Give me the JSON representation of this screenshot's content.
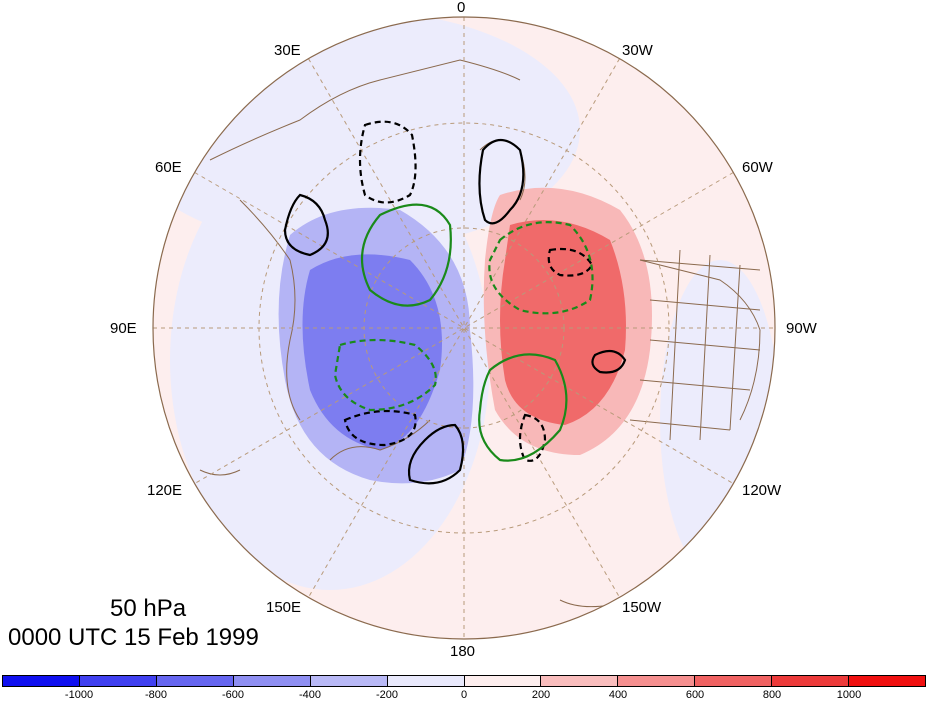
{
  "title": {
    "level": "50 hPa",
    "time": "0000 UTC 15 Feb 1999"
  },
  "longitude_labels": {
    "lon_0": "0",
    "lon_30w": "30W",
    "lon_60w": "60W",
    "lon_90w": "90W",
    "lon_120w": "120W",
    "lon_150w": "150W",
    "lon_180": "180",
    "lon_150e": "150E",
    "lon_120e": "120E",
    "lon_90e": "90E",
    "lon_60e": "60E",
    "lon_30e": "30E"
  },
  "colorbar": {
    "colors": [
      "#1010f0",
      "#4040f0",
      "#6666f0",
      "#8f8ff2",
      "#b9b9f6",
      "#e9e9fc",
      "#fdeeee",
      "#f9bdbd",
      "#f58f8f",
      "#f06262",
      "#ec3a3a",
      "#f01010"
    ],
    "labels": [
      "-1000",
      "-800",
      "-600",
      "-400",
      "-200",
      "0",
      "200",
      "400",
      "600",
      "800",
      "1000"
    ]
  },
  "colors": {
    "positive_anomaly": "#f06262",
    "negative_anomaly": "#6666f0",
    "coastline": "#8b6a4e",
    "contour_black": "#000000",
    "contour_green": "#1a8a1a"
  }
}
